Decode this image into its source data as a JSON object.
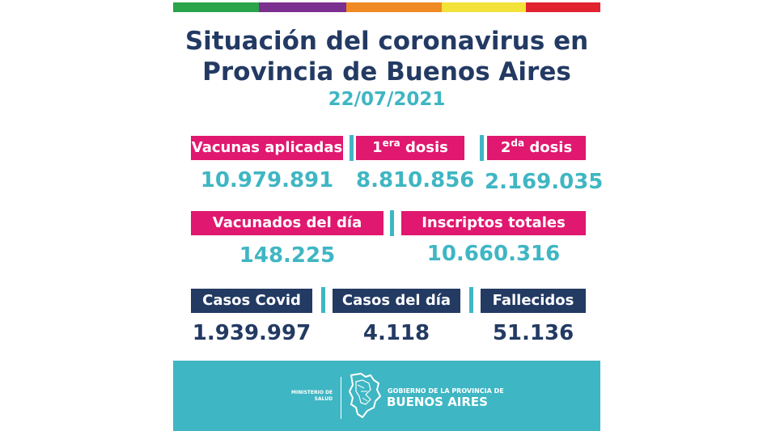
{
  "colors": {
    "stripe": [
      "#2aa44a",
      "#7b2f8f",
      "#f08a24",
      "#f3e23a",
      "#e12330"
    ],
    "pink": "#e0186f",
    "navy": "#233a63",
    "teal": "#3fb6c3"
  },
  "title_line1": "Situación del coronavirus en",
  "title_line2": "Provincia de Buenos Aires",
  "date": "22/07/2021",
  "vaccines": {
    "applied_label": "Vacunas aplicadas",
    "applied_value": "10.979.891",
    "dose1_prefix": "1",
    "dose1_sup": "era",
    "dose1_suffix": " dosis",
    "dose1_value": "8.810.856",
    "dose2_prefix": "2",
    "dose2_sup": "da",
    "dose2_suffix": " dosis",
    "dose2_value": "2.169.035"
  },
  "vaccinated": {
    "day_label": "Vacunados del día",
    "day_value": "148.225",
    "registered_label": "Inscriptos totales",
    "registered_value": "10.660.316"
  },
  "cases": {
    "total_label": "Casos Covid",
    "total_value": "1.939.997",
    "day_label": "Casos del día",
    "day_value": "4.118",
    "deaths_label": "Fallecidos",
    "deaths_value": "51.136"
  },
  "footer": {
    "ministry_line1": "MINISTERIO DE",
    "ministry_line2": "SALUD",
    "gov_line1": "GOBIERNO DE LA PROVINCIA DE",
    "gov_line2": "BUENOS AIRES",
    "icon": "buenos-aires-province-map-icon"
  }
}
